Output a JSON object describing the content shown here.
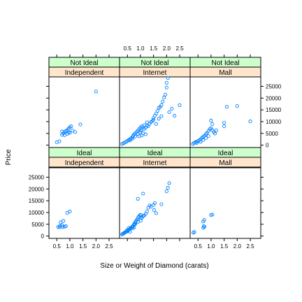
{
  "chart_data": {
    "type": "scatter",
    "xlabel": "Size or Weight of Diamond (carats)",
    "ylabel": "Price",
    "xlim": [
      0.2,
      2.9
    ],
    "ylim": [
      -1000,
      29000
    ],
    "x_ticks": [
      0.5,
      1.0,
      1.5,
      2.0,
      2.5
    ],
    "x_tick_labels": [
      "0.5",
      "1.0",
      "1.5",
      "2.0",
      "2.5"
    ],
    "y_ticks": [
      0,
      5000,
      10000,
      15000,
      20000,
      25000
    ],
    "y_tick_labels": [
      "0",
      "5000",
      "10000",
      "15000",
      "20000",
      "25000"
    ],
    "point_color": "#0080ff",
    "strip_colors": {
      "cut": "#ccffcc",
      "channel": "#ffe5cc"
    },
    "panels": [
      {
        "cut": "Ideal",
        "channel": "Independent",
        "points": [
          [
            0.55,
            3900
          ],
          [
            0.62,
            4300
          ],
          [
            0.7,
            4600
          ],
          [
            0.65,
            5800
          ],
          [
            0.75,
            6400
          ],
          [
            0.72,
            3800
          ],
          [
            0.85,
            4200
          ],
          [
            0.9,
            9800
          ],
          [
            1.0,
            10400
          ],
          [
            0.6,
            3700
          ],
          [
            0.8,
            4000
          ]
        ]
      },
      {
        "cut": "Ideal",
        "channel": "Internet",
        "points": [
          [
            0.3,
            700
          ],
          [
            0.32,
            900
          ],
          [
            0.35,
            1100
          ],
          [
            0.38,
            1300
          ],
          [
            0.4,
            1500
          ],
          [
            0.42,
            1600
          ],
          [
            0.45,
            1800
          ],
          [
            0.5,
            2000
          ],
          [
            0.52,
            2300
          ],
          [
            0.55,
            2600
          ],
          [
            0.58,
            2800
          ],
          [
            0.6,
            3100
          ],
          [
            0.62,
            3300
          ],
          [
            0.65,
            3600
          ],
          [
            0.7,
            4000
          ],
          [
            0.72,
            4400
          ],
          [
            0.75,
            4900
          ],
          [
            0.78,
            5300
          ],
          [
            0.8,
            5800
          ],
          [
            0.82,
            6200
          ],
          [
            0.85,
            6800
          ],
          [
            0.9,
            7400
          ],
          [
            0.92,
            8000
          ],
          [
            0.95,
            8500
          ],
          [
            1.0,
            9000
          ],
          [
            1.0,
            7600
          ],
          [
            1.01,
            6500
          ],
          [
            1.02,
            8900
          ],
          [
            1.05,
            7700
          ],
          [
            1.1,
            8400
          ],
          [
            0.7,
            3300
          ],
          [
            0.75,
            3600
          ],
          [
            0.9,
            6000
          ],
          [
            1.15,
            8800
          ],
          [
            1.2,
            9400
          ],
          [
            1.25,
            10500
          ],
          [
            1.3,
            12000
          ],
          [
            1.35,
            13000
          ],
          [
            1.4,
            12500
          ],
          [
            1.5,
            13200
          ],
          [
            1.52,
            11000
          ],
          [
            1.6,
            9700
          ],
          [
            1.55,
            14000
          ],
          [
            1.8,
            13500
          ],
          [
            2.0,
            19000
          ],
          [
            2.05,
            20500
          ],
          [
            2.1,
            22500
          ],
          [
            0.9,
            15800
          ],
          [
            1.1,
            18000
          ],
          [
            0.55,
            3400
          ],
          [
            0.48,
            2400
          ],
          [
            0.6,
            1800
          ],
          [
            0.68,
            3900
          ],
          [
            0.8,
            5000
          ]
        ]
      },
      {
        "cut": "Ideal",
        "channel": "Mall",
        "points": [
          [
            0.32,
            1400
          ],
          [
            0.36,
            1700
          ],
          [
            0.7,
            6200
          ],
          [
            0.74,
            6800
          ],
          [
            0.7,
            3500
          ],
          [
            0.75,
            3900
          ],
          [
            0.72,
            4200
          ],
          [
            1.0,
            8900
          ],
          [
            1.05,
            9100
          ]
        ]
      },
      {
        "cut": "Not Ideal",
        "channel": "Independent",
        "points": [
          [
            0.5,
            1200
          ],
          [
            0.6,
            1600
          ],
          [
            0.7,
            4400
          ],
          [
            0.75,
            5000
          ],
          [
            0.8,
            5600
          ],
          [
            0.85,
            6000
          ],
          [
            0.9,
            6400
          ],
          [
            0.95,
            7000
          ],
          [
            1.0,
            7600
          ],
          [
            1.05,
            8000
          ],
          [
            1.0,
            5200
          ],
          [
            0.9,
            4800
          ],
          [
            0.8,
            4200
          ],
          [
            0.7,
            5800
          ],
          [
            1.1,
            6200
          ],
          [
            1.2,
            5600
          ],
          [
            0.95,
            5400
          ],
          [
            1.4,
            8800
          ],
          [
            2.0,
            22800
          ]
        ]
      },
      {
        "cut": "Not Ideal",
        "channel": "Internet",
        "points": [
          [
            0.3,
            500
          ],
          [
            0.35,
            800
          ],
          [
            0.4,
            1100
          ],
          [
            0.45,
            1400
          ],
          [
            0.5,
            1800
          ],
          [
            0.55,
            2200
          ],
          [
            0.6,
            2600
          ],
          [
            0.65,
            3000
          ],
          [
            0.7,
            3500
          ],
          [
            0.72,
            4000
          ],
          [
            0.75,
            4500
          ],
          [
            0.8,
            5000
          ],
          [
            0.85,
            5600
          ],
          [
            0.9,
            6200
          ],
          [
            0.95,
            6800
          ],
          [
            1.0,
            7500
          ],
          [
            1.02,
            6200
          ],
          [
            1.05,
            8000
          ],
          [
            1.1,
            7600
          ],
          [
            1.15,
            6900
          ],
          [
            1.2,
            7400
          ],
          [
            1.25,
            8400
          ],
          [
            1.3,
            8100
          ],
          [
            1.35,
            9000
          ],
          [
            1.4,
            9800
          ],
          [
            1.45,
            10200
          ],
          [
            1.5,
            11500
          ],
          [
            1.55,
            12500
          ],
          [
            1.6,
            13400
          ],
          [
            1.65,
            14500
          ],
          [
            1.7,
            15800
          ],
          [
            1.75,
            16200
          ],
          [
            1.8,
            17000
          ],
          [
            1.85,
            18500
          ],
          [
            1.9,
            20200
          ],
          [
            1.95,
            21500
          ],
          [
            2.0,
            24500
          ],
          [
            2.0,
            26500
          ],
          [
            2.05,
            28500
          ],
          [
            2.1,
            14000
          ],
          [
            2.2,
            15500
          ],
          [
            2.3,
            12500
          ],
          [
            2.5,
            17000
          ],
          [
            1.0,
            5500
          ],
          [
            0.9,
            4700
          ],
          [
            0.8,
            3700
          ],
          [
            0.7,
            2800
          ],
          [
            0.6,
            2000
          ],
          [
            1.5,
            10700
          ],
          [
            1.6,
            9000
          ],
          [
            1.7,
            11200
          ],
          [
            1.8,
            12300
          ],
          [
            0.95,
            3800
          ],
          [
            1.05,
            4100
          ],
          [
            1.1,
            5000
          ],
          [
            1.15,
            8500
          ],
          [
            1.2,
            4600
          ],
          [
            1.25,
            9700
          ]
        ]
      },
      {
        "cut": "Not Ideal",
        "channel": "Mall",
        "points": [
          [
            0.3,
            500
          ],
          [
            0.35,
            900
          ],
          [
            0.4,
            1300
          ],
          [
            0.45,
            1500
          ],
          [
            0.5,
            1700
          ],
          [
            0.55,
            2100
          ],
          [
            0.6,
            2500
          ],
          [
            0.65,
            3100
          ],
          [
            0.7,
            3600
          ],
          [
            0.75,
            4000
          ],
          [
            0.8,
            4700
          ],
          [
            0.85,
            5200
          ],
          [
            0.9,
            6000
          ],
          [
            0.95,
            6800
          ],
          [
            1.0,
            7200
          ],
          [
            1.05,
            6400
          ],
          [
            1.1,
            5500
          ],
          [
            1.15,
            4900
          ],
          [
            1.2,
            6300
          ],
          [
            0.9,
            3900
          ],
          [
            0.8,
            3000
          ],
          [
            0.7,
            2200
          ],
          [
            1.0,
            10400
          ],
          [
            1.05,
            8900
          ],
          [
            1.5,
            9500
          ],
          [
            1.5,
            8000
          ],
          [
            1.6,
            16300
          ],
          [
            2.0,
            16600
          ],
          [
            2.5,
            10100
          ],
          [
            0.45,
            900
          ],
          [
            0.6,
            1400
          ]
        ]
      }
    ]
  }
}
